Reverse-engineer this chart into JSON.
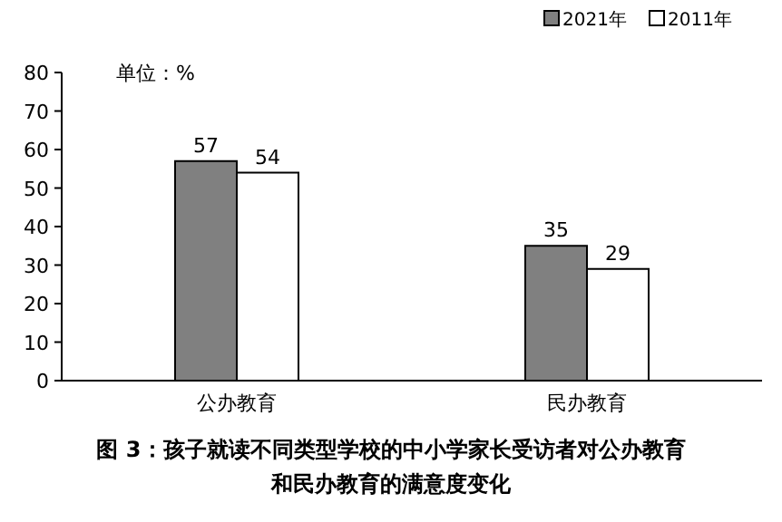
{
  "chart_data": {
    "type": "bar",
    "title": "图 3：孩子就读不同类型学校的中小学家长受访者对公办教育和民办教育的满意度变化",
    "annotations": [
      "单位：%"
    ],
    "categories": [
      "公办教育",
      "民办教育"
    ],
    "series": [
      {
        "name": "2021年",
        "color": "#808080",
        "values": [
          57,
          35
        ]
      },
      {
        "name": "2011年",
        "color": "#ffffff",
        "values": [
          54,
          29
        ]
      }
    ],
    "ylim": [
      0,
      80
    ],
    "yticks": [
      0,
      10,
      20,
      30,
      40,
      50,
      60,
      70,
      80
    ],
    "data_labels": true,
    "legend": "top right",
    "grid": false
  }
}
